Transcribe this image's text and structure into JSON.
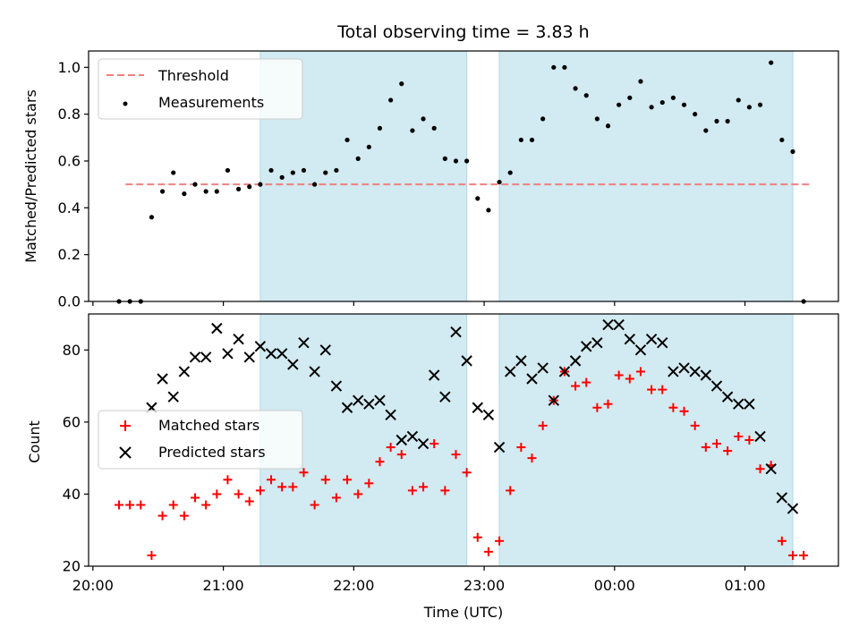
{
  "chart_data": [
    {
      "type": "scatter",
      "title": "Total observing time = 3.83 h",
      "ylabel": "Matched/Predicted stars",
      "xlabel": "",
      "ylim": [
        0,
        1.07
      ],
      "yticks": [
        "0.0",
        "0.2",
        "0.4",
        "0.6",
        "0.8",
        "1.0"
      ],
      "ytick_values": [
        0,
        0.2,
        0.4,
        0.6,
        0.8,
        1.0
      ],
      "legend": {
        "position": "upper-left",
        "entries": [
          "Threshold",
          "Measurements"
        ]
      },
      "threshold": {
        "name": "Threshold",
        "value": 0.5,
        "x_start": "20:15",
        "x_end": "01:30",
        "color": "#f08080"
      },
      "series": [
        {
          "name": "Measurements",
          "color": "#000000",
          "x": [
            "20:12",
            "20:17",
            "20:22",
            "20:27",
            "20:32",
            "20:37",
            "20:42",
            "20:47",
            "20:52",
            "20:57",
            "21:02",
            "21:07",
            "21:12",
            "21:17",
            "21:22",
            "21:27",
            "21:32",
            "21:37",
            "21:42",
            "21:47",
            "21:52",
            "21:57",
            "22:02",
            "22:07",
            "22:12",
            "22:17",
            "22:22",
            "22:27",
            "22:32",
            "22:37",
            "22:42",
            "22:47",
            "22:52",
            "22:57",
            "23:02",
            "23:07",
            "23:12",
            "23:17",
            "23:22",
            "23:27",
            "23:32",
            "23:37",
            "23:42",
            "23:47",
            "23:52",
            "23:57",
            "00:02",
            "00:07",
            "00:12",
            "00:17",
            "00:22",
            "00:27",
            "00:32",
            "00:37",
            "00:42",
            "00:47",
            "00:52",
            "00:57",
            "01:02",
            "01:07",
            "01:12",
            "01:17",
            "01:22",
            "01:27"
          ],
          "values": [
            0.0,
            0.0,
            0.0,
            0.36,
            0.47,
            0.55,
            0.46,
            0.5,
            0.47,
            0.47,
            0.56,
            0.48,
            0.49,
            0.5,
            0.56,
            0.53,
            0.55,
            0.56,
            0.5,
            0.55,
            0.56,
            0.69,
            0.61,
            0.66,
            0.74,
            0.86,
            0.93,
            0.73,
            0.78,
            0.74,
            0.61,
            0.6,
            0.6,
            0.44,
            0.39,
            0.51,
            0.55,
            0.69,
            0.69,
            0.78,
            1.0,
            1.0,
            0.91,
            0.88,
            0.78,
            0.75,
            0.84,
            0.87,
            0.94,
            0.83,
            0.85,
            0.87,
            0.84,
            0.8,
            0.73,
            0.77,
            0.77,
            0.86,
            0.83,
            0.84,
            1.02,
            0.69,
            0.64,
            0.0
          ]
        }
      ]
    },
    {
      "type": "scatter",
      "title": "",
      "xlabel": "Time (UTC)",
      "ylabel": "Count",
      "ylim": [
        20,
        90
      ],
      "yticks": [
        "20",
        "40",
        "60",
        "80"
      ],
      "ytick_values": [
        20,
        40,
        60,
        80
      ],
      "xticks": [
        "20:00",
        "21:00",
        "22:00",
        "23:00",
        "00:00",
        "01:00"
      ],
      "xlim": [
        "19:58",
        "01:43"
      ],
      "shaded_ranges": [
        [
          "21:17",
          "22:52"
        ],
        [
          "23:07",
          "01:22"
        ]
      ],
      "shade_color": "#add8e6",
      "legend": {
        "position": "center-left",
        "entries": [
          "Matched stars",
          "Predicted stars"
        ]
      },
      "series": [
        {
          "name": "Matched stars",
          "color": "#ff0000",
          "marker": "plus",
          "x": [
            "20:12",
            "20:17",
            "20:22",
            "20:27",
            "20:32",
            "20:37",
            "20:42",
            "20:47",
            "20:52",
            "20:57",
            "21:02",
            "21:07",
            "21:12",
            "21:17",
            "21:22",
            "21:27",
            "21:32",
            "21:37",
            "21:42",
            "21:47",
            "21:52",
            "21:57",
            "22:02",
            "22:07",
            "22:12",
            "22:17",
            "22:22",
            "22:27",
            "22:32",
            "22:37",
            "22:42",
            "22:47",
            "22:52",
            "22:57",
            "23:02",
            "23:07",
            "23:12",
            "23:17",
            "23:22",
            "23:27",
            "23:32",
            "23:37",
            "23:42",
            "23:47",
            "23:52",
            "23:57",
            "00:02",
            "00:07",
            "00:12",
            "00:17",
            "00:22",
            "00:27",
            "00:32",
            "00:37",
            "00:42",
            "00:47",
            "00:52",
            "00:57",
            "01:02",
            "01:07",
            "01:12",
            "01:17",
            "01:22",
            "01:27"
          ],
          "values": [
            37,
            37,
            37,
            23,
            34,
            37,
            34,
            39,
            37,
            40,
            44,
            40,
            38,
            41,
            44,
            42,
            42,
            46,
            37,
            44,
            39,
            44,
            40,
            43,
            49,
            53,
            51,
            41,
            42,
            54,
            41,
            51,
            46,
            28,
            24,
            27,
            41,
            53,
            50,
            59,
            66,
            74,
            70,
            71,
            64,
            65,
            73,
            72,
            74,
            69,
            69,
            64,
            63,
            59,
            53,
            54,
            52,
            56,
            55,
            47,
            48,
            27,
            23,
            23
          ]
        },
        {
          "name": "Predicted stars",
          "color": "#000000",
          "marker": "x",
          "x": [
            "20:27",
            "20:32",
            "20:37",
            "20:42",
            "20:47",
            "20:52",
            "20:57",
            "21:02",
            "21:07",
            "21:12",
            "21:17",
            "21:22",
            "21:27",
            "21:32",
            "21:37",
            "21:42",
            "21:47",
            "21:52",
            "21:57",
            "22:02",
            "22:07",
            "22:12",
            "22:17",
            "22:22",
            "22:27",
            "22:32",
            "22:37",
            "22:42",
            "22:47",
            "22:52",
            "22:57",
            "23:02",
            "23:07",
            "23:12",
            "23:17",
            "23:22",
            "23:27",
            "23:32",
            "23:37",
            "23:42",
            "23:47",
            "23:52",
            "23:57",
            "00:02",
            "00:07",
            "00:12",
            "00:17",
            "00:22",
            "00:27",
            "00:32",
            "00:37",
            "00:42",
            "00:47",
            "00:52",
            "00:57",
            "01:02",
            "01:07",
            "01:12",
            "01:17",
            "01:22"
          ],
          "values": [
            64,
            72,
            67,
            74,
            78,
            78,
            86,
            79,
            83,
            78,
            81,
            79,
            79,
            76,
            82,
            74,
            80,
            70,
            64,
            66,
            65,
            66,
            62,
            55,
            56,
            54,
            73,
            67,
            85,
            77,
            64,
            62,
            53,
            74,
            77,
            72,
            75,
            66,
            74,
            77,
            81,
            82,
            87,
            87,
            83,
            80,
            83,
            82,
            74,
            75,
            74,
            73,
            70,
            67,
            65,
            65,
            56,
            47,
            39,
            36
          ]
        }
      ]
    }
  ]
}
